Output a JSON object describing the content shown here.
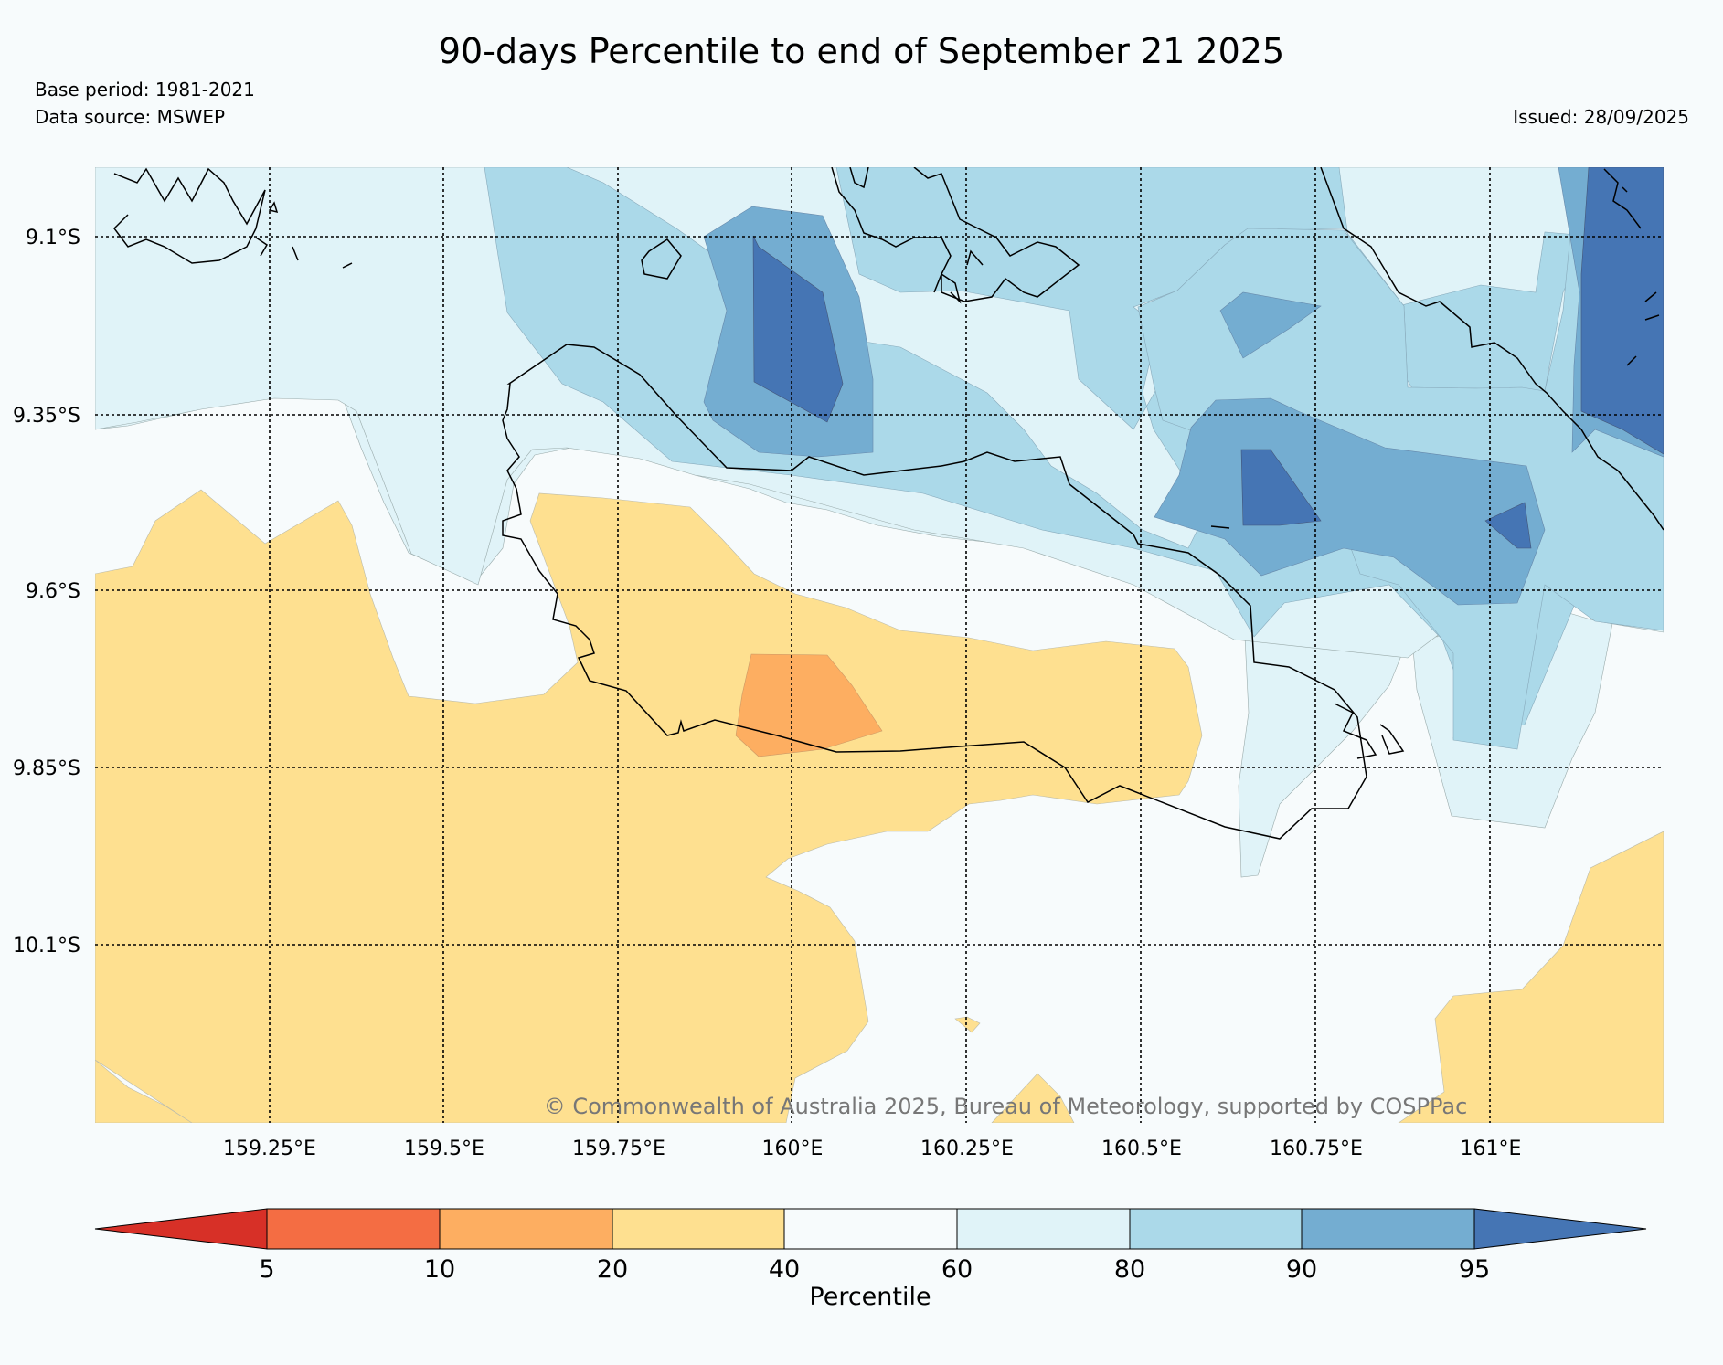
{
  "header": {
    "title": "90-days Percentile to end of September 21 2025",
    "base_period": "Base period: 1981-2021",
    "data_source": "Data source: MSWEP",
    "issued": "Issued: 28/09/2025"
  },
  "map": {
    "lat_labels": [
      "9.1°S",
      "9.35°S",
      "9.6°S",
      "9.85°S",
      "10.1°S"
    ],
    "lon_labels": [
      "159.25°E",
      "159.5°E",
      "159.75°E",
      "160°E",
      "160.25°E",
      "160.5°E",
      "160.75°E",
      "161°E"
    ],
    "copyright": "© Commonwealth of Australia 2025, Bureau of Meteorology, supported by COSPPac"
  },
  "colorbar": {
    "title": "Percentile",
    "ticks": [
      "5",
      "10",
      "20",
      "40",
      "60",
      "80",
      "90",
      "95"
    ],
    "colors": [
      "#d73027",
      "#f46d43",
      "#fdae61",
      "#fee090",
      "#f7fbfc",
      "#e0f3f8",
      "#abd9e9",
      "#74add1",
      "#4575b4"
    ]
  }
}
